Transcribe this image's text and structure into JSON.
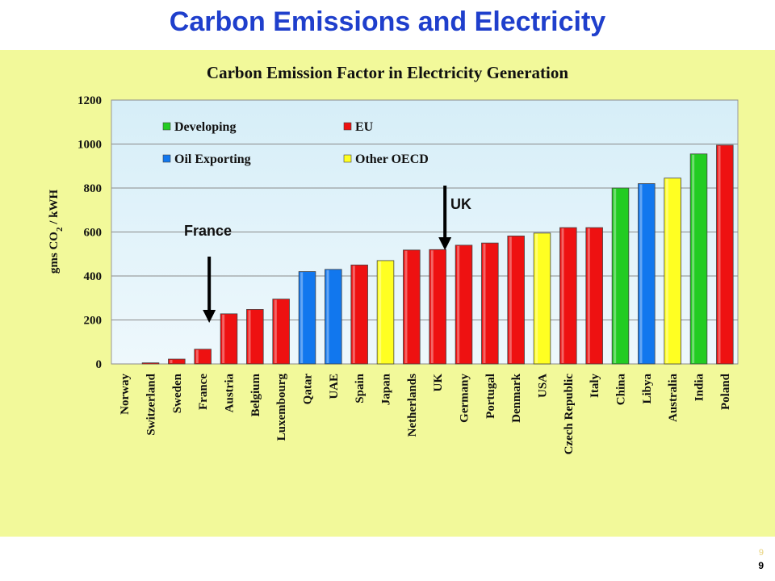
{
  "slide": {
    "title": "Carbon Emissions and Electricity",
    "page_number": "9",
    "page_number_ghost": "9"
  },
  "colors": {
    "Developing": "#22cc22",
    "EU": "#ee1111",
    "Oil Exporting": "#1177ee",
    "Other OECD": "#ffff22",
    "panel": "#f2f99a",
    "plot_area": "#dcf0f8",
    "title": "#1f3fcc"
  },
  "chart_data": {
    "type": "bar",
    "title": "Carbon Emission Factor in Electricity Generation",
    "xlabel": "",
    "ylabel_parts": [
      "gms CO",
      "2",
      " / kWH"
    ],
    "ylim": [
      0,
      1200
    ],
    "yticks": [
      0,
      200,
      400,
      600,
      800,
      1000,
      1200
    ],
    "grid": true,
    "legend_placement": "top-left inside plot",
    "legend": [
      "Developing",
      "EU",
      "Oil Exporting",
      "Other OECD"
    ],
    "categories": [
      "Norway",
      "Switzerland",
      "Sweden",
      "France",
      "Austria",
      "Belgium",
      "Luxembourg",
      "Qatar",
      "UAE",
      "Spain",
      "Japan",
      "Netherlands",
      "UK",
      "Germany",
      "Portugal",
      "Denmark",
      "USA",
      "Czech Republic",
      "Italy",
      "China",
      "Libya",
      "Australia",
      "India",
      "Poland"
    ],
    "values": [
      0,
      5,
      22,
      67,
      228,
      248,
      295,
      420,
      430,
      450,
      470,
      518,
      520,
      540,
      550,
      582,
      595,
      620,
      620,
      800,
      820,
      845,
      955,
      995
    ],
    "groups": [
      "EU",
      "EU",
      "EU",
      "EU",
      "EU",
      "EU",
      "EU",
      "Oil Exporting",
      "Oil Exporting",
      "EU",
      "Other OECD",
      "EU",
      "EU",
      "EU",
      "EU",
      "EU",
      "Other OECD",
      "EU",
      "EU",
      "Developing",
      "Oil Exporting",
      "Other OECD",
      "Developing",
      "EU"
    ],
    "annotations": [
      {
        "text": "France",
        "category": "France"
      },
      {
        "text": "UK",
        "category": "UK"
      }
    ]
  }
}
